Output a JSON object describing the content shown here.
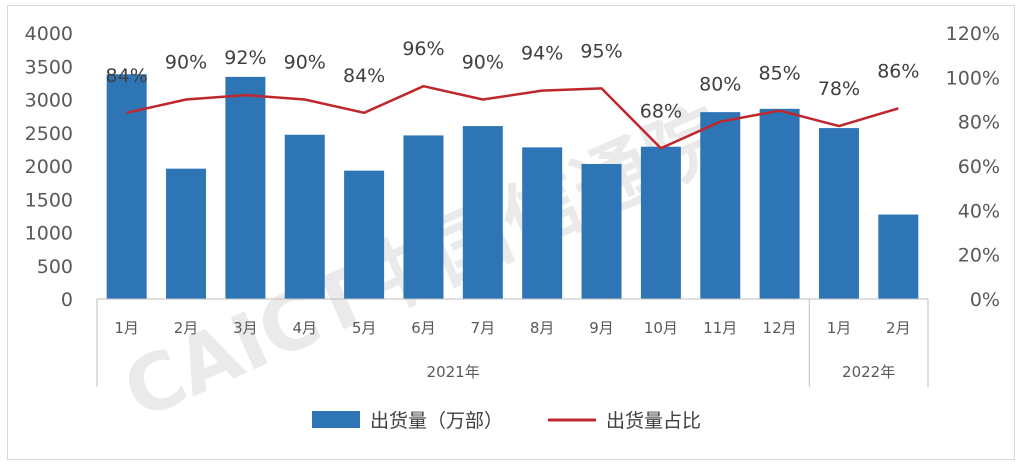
{
  "chart_data": {
    "type": "bar",
    "categories": [
      "1月",
      "2月",
      "3月",
      "4月",
      "5月",
      "6月",
      "7月",
      "8月",
      "9月",
      "10月",
      "11月",
      "12月",
      "1月",
      "2月"
    ],
    "groups": [
      {
        "label": "2021年",
        "start": 0,
        "end": 11
      },
      {
        "label": "2022年",
        "start": 12,
        "end": 13
      }
    ],
    "series": [
      {
        "name": "出货量（万部）",
        "type": "bar",
        "axis": "left",
        "color": "#2e75b6",
        "values": [
          3380,
          1960,
          3340,
          2470,
          1930,
          2460,
          2600,
          2280,
          2030,
          2290,
          2810,
          2860,
          2570,
          1270
        ]
      },
      {
        "name": "出货量占比",
        "type": "line",
        "axis": "right",
        "color": "#c0272d",
        "values": [
          84,
          90,
          92,
          90,
          84,
          96,
          90,
          94,
          95,
          68,
          80,
          85,
          78,
          86
        ],
        "labels": [
          "84%",
          "90%",
          "92%",
          "90%",
          "84%",
          "96%",
          "90%",
          "94%",
          "95%",
          "68%",
          "80%",
          "85%",
          "78%",
          "86%"
        ]
      }
    ],
    "y_left": {
      "min": 0,
      "max": 4000,
      "step": 500,
      "ticks": [
        "0",
        "500",
        "1000",
        "1500",
        "2000",
        "2500",
        "3000",
        "3500",
        "4000"
      ]
    },
    "y_right": {
      "min": 0,
      "max": 120,
      "step": 20,
      "ticks": [
        "0%",
        "20%",
        "40%",
        "60%",
        "80%",
        "100%",
        "120%"
      ]
    },
    "grid": false,
    "legend": "bottom",
    "watermark": "CAICT中国信通院"
  }
}
